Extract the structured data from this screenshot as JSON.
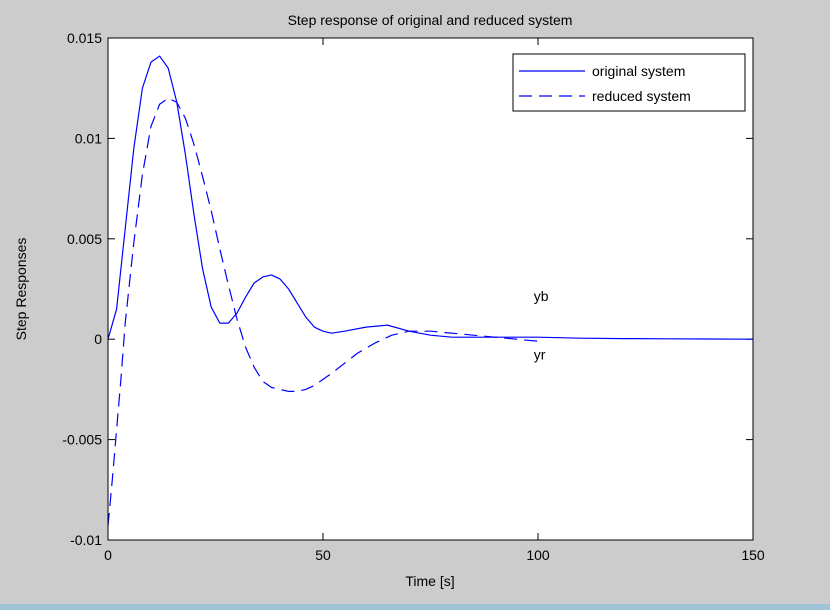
{
  "chart_data": {
    "type": "line",
    "title": "Step response of original and reduced system",
    "xlabel": "Time [s]",
    "ylabel": "Step Responses",
    "xlim": [
      0,
      150
    ],
    "ylim": [
      -0.01,
      0.015
    ],
    "xticks": [
      0,
      50,
      100,
      150
    ],
    "xtick_labels": [
      "0",
      "50",
      "100",
      "150"
    ],
    "yticks": [
      -0.01,
      -0.005,
      0,
      0.005,
      0.01,
      0.015
    ],
    "ytick_labels": [
      "-0.01",
      "-0.005",
      "0",
      "0.005",
      "0.01",
      "0.015"
    ],
    "grid": false,
    "legend_position": "top-right",
    "series": [
      {
        "name": "original system",
        "style": "solid",
        "color": "#0000ff",
        "x": [
          0,
          2,
          4,
          6,
          8,
          10,
          12,
          14,
          16,
          18,
          20,
          22,
          24,
          26,
          28,
          30,
          32,
          34,
          36,
          38,
          40,
          42,
          44,
          46,
          48,
          50,
          52,
          55,
          60,
          65,
          70,
          75,
          80,
          90,
          100,
          110,
          120,
          130,
          140,
          150
        ],
        "y": [
          0,
          0.0015,
          0.0055,
          0.0095,
          0.0125,
          0.0138,
          0.0141,
          0.0135,
          0.0118,
          0.0092,
          0.0062,
          0.0035,
          0.0016,
          0.0008,
          0.0008,
          0.0013,
          0.0021,
          0.0028,
          0.0031,
          0.0032,
          0.003,
          0.0025,
          0.0018,
          0.0011,
          0.0006,
          0.0004,
          0.0003,
          0.0004,
          0.0006,
          0.0007,
          0.0004,
          0.0002,
          0.0001,
          0.0001,
          0.0001,
          5e-05,
          3e-05,
          2e-05,
          1e-05,
          0.0
        ]
      },
      {
        "name": "reduced system",
        "style": "dashed",
        "color": "#0000ff",
        "x": [
          0,
          1,
          2,
          3,
          4,
          6,
          8,
          10,
          12,
          14,
          16,
          18,
          20,
          22,
          24,
          26,
          28,
          30,
          32,
          34,
          36,
          38,
          40,
          42,
          44,
          46,
          48,
          50,
          52,
          55,
          58,
          62,
          66,
          70,
          75,
          80,
          85,
          90,
          95,
          100
        ],
        "y": [
          -0.0093,
          -0.007,
          -0.0045,
          -0.002,
          0.0008,
          0.0048,
          0.0082,
          0.0106,
          0.0117,
          0.012,
          0.0118,
          0.011,
          0.0097,
          0.0081,
          0.0064,
          0.0045,
          0.0027,
          0.001,
          -0.0004,
          -0.0014,
          -0.0021,
          -0.0024,
          -0.0025,
          -0.0026,
          -0.0026,
          -0.0025,
          -0.0023,
          -0.002,
          -0.0017,
          -0.0012,
          -0.0007,
          -0.0002,
          0.0002,
          0.0004,
          0.0004,
          0.0003,
          0.0002,
          0.0001,
          0.0,
          -0.0001
        ]
      }
    ],
    "annotations": [
      {
        "text": "yb",
        "x": 99,
        "y": 0.0019
      },
      {
        "text": "yr",
        "x": 99,
        "y": -0.001
      }
    ]
  }
}
